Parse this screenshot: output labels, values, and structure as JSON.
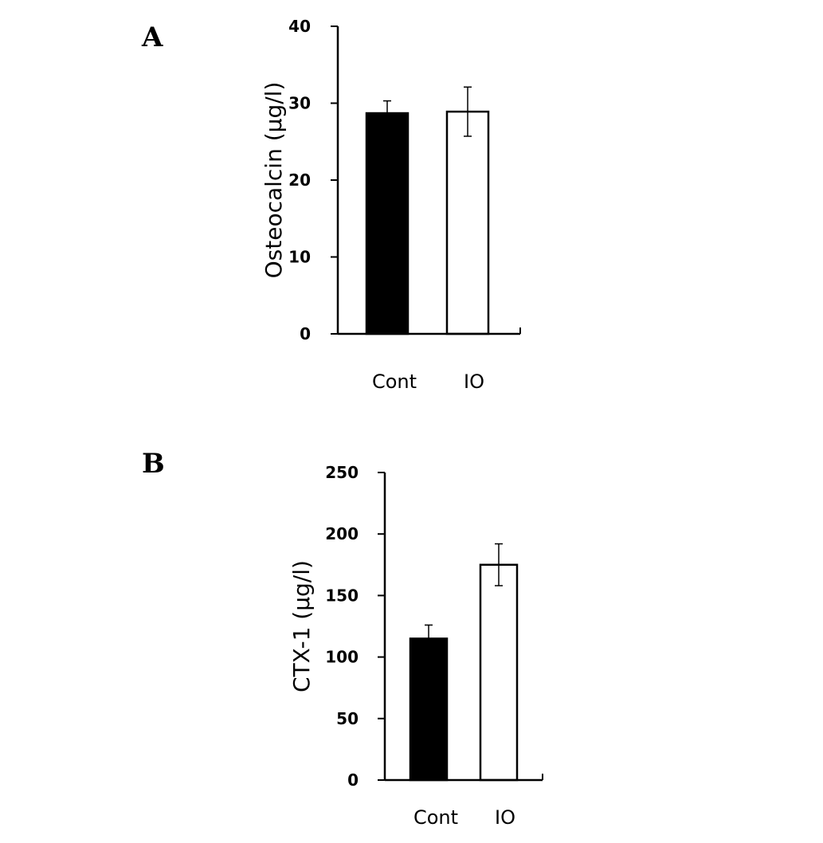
{
  "chart_data": [
    {
      "type": "bar",
      "panel": "A",
      "categories": [
        "Cont",
        "IO"
      ],
      "series": [
        {
          "values": [
            28.7,
            28.9
          ],
          "errors": [
            1.6,
            3.2
          ],
          "colors": [
            "#000000",
            "#ffffff"
          ]
        }
      ],
      "ylabel": "Osteocalcin (μg/l)",
      "ylim": [
        0,
        40
      ],
      "yticks": [
        "0",
        "10",
        "20",
        "30",
        "40"
      ],
      "grid": false
    },
    {
      "type": "bar",
      "panel": "B",
      "categories": [
        "Cont",
        "IO"
      ],
      "series": [
        {
          "values": [
            115,
            175
          ],
          "errors": [
            11,
            17
          ],
          "colors": [
            "#000000",
            "#ffffff"
          ]
        }
      ],
      "ylabel": "CTX-1 (μg/l)",
      "ylim": [
        0,
        250
      ],
      "yticks": [
        "0",
        "50",
        "100",
        "150",
        "200",
        "250"
      ],
      "grid": false
    }
  ]
}
